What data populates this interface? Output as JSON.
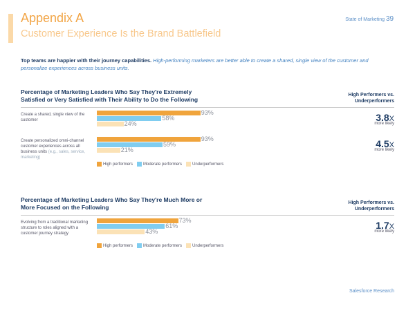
{
  "header": {
    "title": "Appendix A",
    "subtitle": "Customer Experience Is the Brand Battlefield",
    "report": "State of Marketing",
    "page": "39"
  },
  "intro": {
    "lead": "Top teams are happier with their journey capabilities.",
    "text": "High-performing marketers are better able to create a shared, single view of the customer and personalize experiences across business units."
  },
  "chart_data": [
    {
      "type": "bar",
      "orientation": "horizontal",
      "title": "Percentage of Marketing Leaders Who Say They're Extremely Satisfied or Very Satisfied with Their Ability to Do the Following",
      "comparison_label": "High Performers vs. Underperformers",
      "categories": [
        "Create a shared, single view of the customer",
        "Create personalized omni-channel customer experiences across all business units"
      ],
      "category_notes": [
        null,
        "(e.g., sales, service, marketing)"
      ],
      "series": [
        {
          "name": "High performers",
          "color": "#f0a43c",
          "values": [
            93,
            93
          ],
          "value_labels": [
            "93%",
            "93%"
          ]
        },
        {
          "name": "Moderate performers",
          "color": "#80cdf0",
          "values": [
            58,
            59
          ],
          "value_labels": [
            "58%",
            "59%"
          ]
        },
        {
          "name": "Underperformers",
          "color": "#fbe2b6",
          "values": [
            24,
            21
          ],
          "value_labels": [
            "24%",
            "21%"
          ]
        }
      ],
      "ratios": [
        "3.8",
        "4.5"
      ],
      "ratio_unit": "X",
      "ratio_caption": "more likely",
      "xlim": [
        0,
        100
      ],
      "legend": "bottom"
    },
    {
      "type": "bar",
      "orientation": "horizontal",
      "title": "Percentage of Marketing Leaders Who Say They're Much More or More Focused on the Following",
      "comparison_label": "High Performers vs. Underperformers",
      "categories": [
        "Evolving from a traditional marketing structure to roles aligned with a customer journey strategy"
      ],
      "series": [
        {
          "name": "High performers",
          "color": "#f0a43c",
          "values": [
            73
          ],
          "value_labels": [
            "73%"
          ]
        },
        {
          "name": "Moderate performers",
          "color": "#80cdf0",
          "values": [
            61
          ],
          "value_labels": [
            "61%"
          ]
        },
        {
          "name": "Underperformers",
          "color": "#fbe2b6",
          "values": [
            43
          ],
          "value_labels": [
            "43%"
          ]
        }
      ],
      "ratios": [
        "1.7"
      ],
      "ratio_unit": "X",
      "ratio_caption": "more likely",
      "xlim": [
        0,
        100
      ],
      "legend": "bottom"
    }
  ],
  "footer": {
    "source": "Salesforce Research"
  }
}
